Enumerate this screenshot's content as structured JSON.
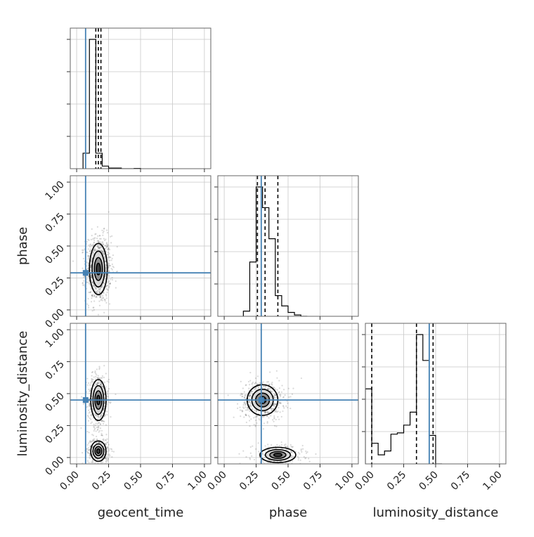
{
  "chart_data": {
    "type": "corner",
    "parameters": [
      "geocent_time",
      "phase",
      "luminosity_distance"
    ],
    "axis_labels": {
      "geocent_time": "geocent_time",
      "phase": "phase",
      "luminosity_distance": "luminosity_distance"
    },
    "tick_labels": [
      "0.00",
      "0.25",
      "0.50",
      "0.75",
      "1.00"
    ],
    "axis_range": [
      -0.05,
      1.05
    ],
    "grid": true,
    "truths": {
      "geocent_time": 0.07,
      "phase": 0.29,
      "luminosity_distance": 0.45
    },
    "truth_color": "#4682b4",
    "histograms": {
      "geocent_time": {
        "bin_edges": [
          0.05,
          0.1,
          0.15,
          0.2,
          0.25,
          0.3,
          0.35,
          0.4,
          0.45,
          0.5
        ],
        "counts": [
          0.12,
          1.0,
          0.12,
          0.02,
          0.005,
          0.005,
          0.0,
          0.0,
          0.002
        ],
        "quantiles": [
          0.15,
          0.17,
          0.19
        ]
      },
      "phase": {
        "bin_edges": [
          0.15,
          0.2,
          0.25,
          0.3,
          0.35,
          0.4,
          0.45,
          0.5,
          0.55,
          0.6,
          0.65
        ],
        "counts": [
          0.04,
          0.42,
          1.0,
          0.84,
          0.6,
          0.16,
          0.08,
          0.03,
          0.01,
          0.0
        ],
        "quantiles": [
          0.26,
          0.32,
          0.42
        ]
      },
      "luminosity_distance": {
        "bin_edges": [
          -0.05,
          0.0,
          0.05,
          0.1,
          0.15,
          0.2,
          0.25,
          0.3,
          0.35,
          0.4,
          0.45,
          0.5,
          0.55
        ],
        "counts": [
          0.58,
          0.16,
          0.07,
          0.1,
          0.23,
          0.24,
          0.3,
          0.4,
          1.0,
          0.8,
          0.22,
          0.0
        ],
        "quantiles": [
          0.0,
          0.35,
          0.48
        ]
      }
    },
    "joint_2d": [
      {
        "x": "geocent_time",
        "y": "phase",
        "clusters": [
          {
            "mean": [
              0.17,
              0.32
            ],
            "sd": [
              0.035,
              0.1
            ],
            "weight": 1.0
          }
        ]
      },
      {
        "x": "geocent_time",
        "y": "luminosity_distance",
        "clusters": [
          {
            "mean": [
              0.17,
              0.45
            ],
            "sd": [
              0.03,
              0.08
            ],
            "weight": 0.6
          },
          {
            "mean": [
              0.17,
              0.05
            ],
            "sd": [
              0.03,
              0.04
            ],
            "weight": 0.4
          }
        ]
      },
      {
        "x": "phase",
        "y": "luminosity_distance",
        "clusters": [
          {
            "mean": [
              0.3,
              0.45
            ],
            "sd": [
              0.06,
              0.06
            ],
            "weight": 0.65
          },
          {
            "mean": [
              0.42,
              0.02
            ],
            "sd": [
              0.07,
              0.03
            ],
            "weight": 0.35
          }
        ]
      }
    ]
  }
}
